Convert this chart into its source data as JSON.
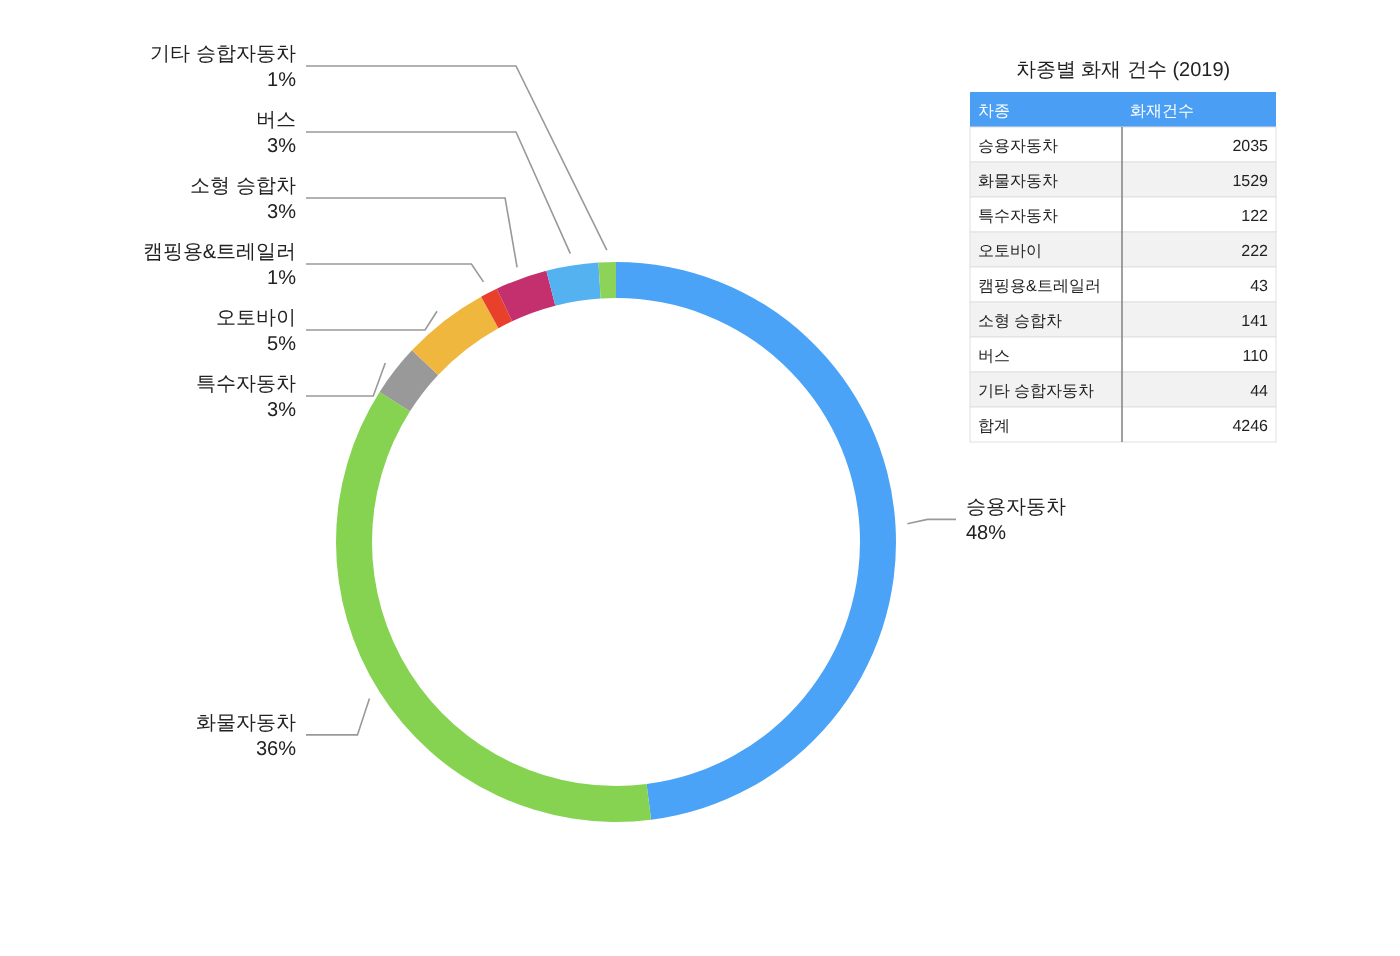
{
  "chart_data": [
    {
      "type": "donut",
      "categories": [
        "승용자동차",
        "화물자동차",
        "특수자동차",
        "오토바이",
        "캠핑용&트레일러",
        "소형 승합차",
        "버스",
        "기타 승합자동차"
      ],
      "values": [
        48,
        36,
        3,
        5,
        1,
        3,
        3,
        1
      ],
      "colors": [
        "#4aa3f7",
        "#86d352",
        "#999999",
        "#f0b73e",
        "#e8402a",
        "#c4306e",
        "#55b2f0",
        "#8dd35a"
      ],
      "value_labels": [
        "48%",
        "36%",
        "3%",
        "5%",
        "1%",
        "3%",
        "3%",
        "1%"
      ]
    },
    {
      "type": "other",
      "title": "차종별 화재 건수 (2019)",
      "categories": [
        "승용자동차",
        "화물자동차",
        "특수자동차",
        "오토바이",
        "캠핑용&트레일러",
        "소형 승합차",
        "버스",
        "기타 승합자동차"
      ],
      "values": [
        2035,
        1529,
        122,
        222,
        43,
        141,
        110,
        44
      ],
      "data_labels": true,
      "annotations": [
        "차종",
        "화재건수",
        "합계"
      ],
      "totals": [
        "4246"
      ]
    }
  ]
}
